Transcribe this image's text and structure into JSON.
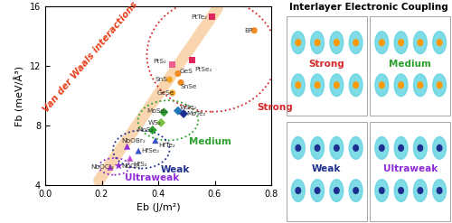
{
  "chart_data": {
    "type": "scatter",
    "x_label": "Eb (J/m²)",
    "y_label": "Fb (meV/Å³)",
    "xlim": [
      0.0,
      0.8
    ],
    "xticks": [
      {
        "value": 0.0,
        "label": "0.0"
      },
      0.2,
      0.4,
      0.6,
      0.8
    ],
    "ylim": [
      4,
      16
    ],
    "yticks": [
      4,
      8,
      12,
      16
    ],
    "grid": false,
    "annotation": {
      "text": "Van der Waals interactions",
      "color": "#e8401c"
    },
    "groups": [
      {
        "name": "Strong",
        "color": "#d62728"
      },
      {
        "name": "Medium",
        "color": "#2ca02c"
      },
      {
        "name": "Weak",
        "color": "#1f2f8f"
      },
      {
        "name": "Ultraweak",
        "color": "#8e2ad6"
      }
    ],
    "points": [
      {
        "label": "PtTe₂",
        "x": 0.59,
        "y": 15.3,
        "color": "#e0245e",
        "marker": "square",
        "group": "Strong"
      },
      {
        "label": "BP",
        "x": 0.74,
        "y": 14.4,
        "color": "#f08a24",
        "marker": "circle",
        "group": "Strong"
      },
      {
        "label": "PtS₂",
        "x": 0.45,
        "y": 12.1,
        "color": "#ef5b8a",
        "marker": "square",
        "group": "Strong"
      },
      {
        "label": "PtSe₂",
        "x": 0.52,
        "y": 12.4,
        "color": "#e0245e",
        "marker": "square",
        "group": "Strong"
      },
      {
        "label": "GeS",
        "x": 0.47,
        "y": 11.5,
        "color": "#f08a24",
        "marker": "circle",
        "group": "Strong"
      },
      {
        "label": "SnS",
        "x": 0.44,
        "y": 11.1,
        "color": "#f5a623",
        "marker": "circle",
        "group": "Strong"
      },
      {
        "label": "SnSe",
        "x": 0.48,
        "y": 10.9,
        "color": "#f08a24",
        "marker": "circle",
        "group": "Strong"
      },
      {
        "label": "GeSe",
        "x": 0.45,
        "y": 10.2,
        "color": "#f5a623",
        "marker": "circle",
        "group": "Strong"
      },
      {
        "label": "MoSe₂",
        "x": 0.42,
        "y": 8.9,
        "color": "#2ca02c",
        "marker": "diamond",
        "group": "Medium"
      },
      {
        "label": "WSe₂",
        "x": 0.47,
        "y": 9.0,
        "color": "#1f77b4",
        "marker": "diamond",
        "group": "Medium"
      },
      {
        "label": "MoTe₂",
        "x": 0.49,
        "y": 8.8,
        "color": "#1f2f8f",
        "marker": "diamond",
        "group": "Medium"
      },
      {
        "label": "WS₂",
        "x": 0.41,
        "y": 8.2,
        "color": "#7ac143",
        "marker": "diamond",
        "group": "Medium"
      },
      {
        "label": "MoS₂",
        "x": 0.38,
        "y": 7.7,
        "color": "#2ca02c",
        "marker": "diamond",
        "group": "Medium"
      },
      {
        "label": "HfTe₂",
        "x": 0.39,
        "y": 7.0,
        "color": "#3a52c8",
        "marker": "triangle",
        "group": "Weak"
      },
      {
        "label": "HfSe₂",
        "x": 0.33,
        "y": 6.3,
        "color": "#3a52c8",
        "marker": "triangle",
        "group": "Weak"
      },
      {
        "label": "HfS₂",
        "x": 0.3,
        "y": 5.8,
        "color": "#c04bd6",
        "marker": "triangle",
        "group": "Weak"
      },
      {
        "label": "NbOBr₂",
        "x": 0.29,
        "y": 6.6,
        "color": "#8e2ad6",
        "marker": "triangle",
        "group": "Weak"
      },
      {
        "label": "NbOCl₂",
        "x": 0.23,
        "y": 5.2,
        "color": "#b03ad6",
        "marker": "triangle",
        "group": "Ultraweak"
      },
      {
        "label": "NbOI₂",
        "x": 0.26,
        "y": 5.3,
        "color": "#8e2ad6",
        "marker": "star",
        "group": "Ultraweak"
      }
    ]
  },
  "diagram": {
    "title": "Interlayer Electronic Coupling",
    "panels": [
      {
        "label": "Strong",
        "color": "#d62728"
      },
      {
        "label": "Medium",
        "color": "#2ca02c"
      },
      {
        "label": "Weak",
        "color": "#1f2f8f"
      },
      {
        "label": "Ultraweak",
        "color": "#8e2ad6"
      }
    ]
  }
}
